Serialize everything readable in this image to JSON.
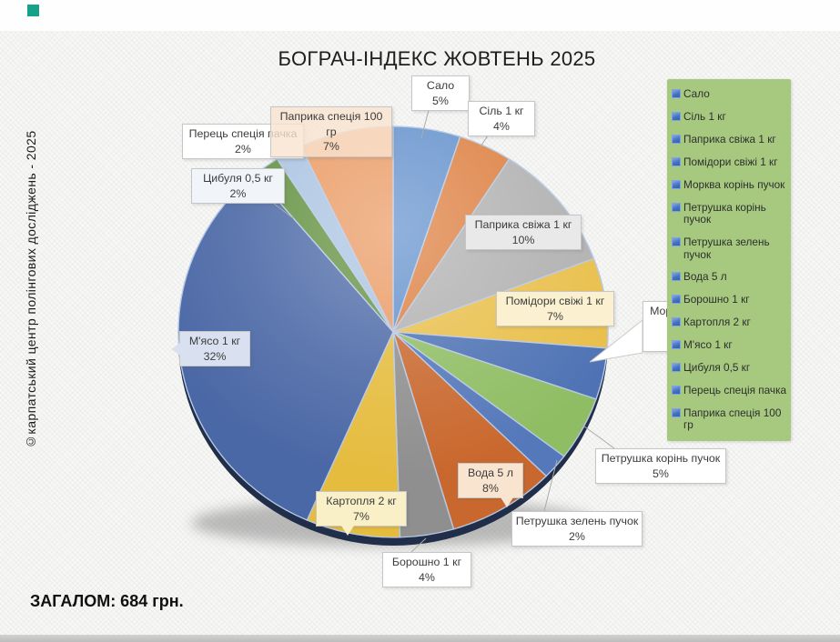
{
  "page": {
    "title": "БОГРАЧ-ІНДЕКС ЖОВТЕНЬ 2025",
    "copyright": "©карпатський центр полінгових досліджень - 2025",
    "total": "ЗАГАЛОМ: 684 грн."
  },
  "chart_data": {
    "type": "pie",
    "title": "БОГРАЧ-ІНДЕКС ЖОВТЕНЬ 2025",
    "unit": "%",
    "categories": [
      "Сало",
      "Сіль 1 кг",
      "Паприка свіжа 1 кг",
      "Помідори свіжі 1 кг",
      "Морква корінь пучок",
      "Петрушка корінь пучок",
      "Петрушка зелень пучок",
      "Вода 5 л",
      "Борошно 1 кг",
      "Картопля 2 кг",
      "М'ясо 1 кг",
      "Цибуля 0,5 кг",
      "Перець спеція пачка",
      "Паприка спеція 100 гр"
    ],
    "values": [
      5,
      4,
      10,
      7,
      4,
      5,
      2,
      8,
      4,
      7,
      32,
      2,
      2,
      7
    ],
    "colors": [
      "#6290cc",
      "#dd7e3e",
      "#b0b0b0",
      "#e9bf4a",
      "#4e72b4",
      "#8fbd63",
      "#5578ba",
      "#c9682e",
      "#8f8f8f",
      "#e5bc3e",
      "#4b68a6",
      "#61903f",
      "#a9c3e1",
      "#ea9961"
    ],
    "label_backgrounds": [
      "#ffffff",
      "#ffffff",
      "#e9e9e9",
      "#fbf0d0",
      "#ffffff",
      "#ffffff",
      "#ffffff",
      "#f9e4d0",
      "#ffffff",
      "#faf0c8",
      "#d9e1f0",
      "#f1f4f9",
      "#ffffff",
      "rgba(249,227,208,0.8)"
    ],
    "legend_position": "right",
    "legend_background": "#a6c97f",
    "legend_marker_color": "#4472c4",
    "total_label": "ЗАГАЛОМ: 684 грн."
  }
}
